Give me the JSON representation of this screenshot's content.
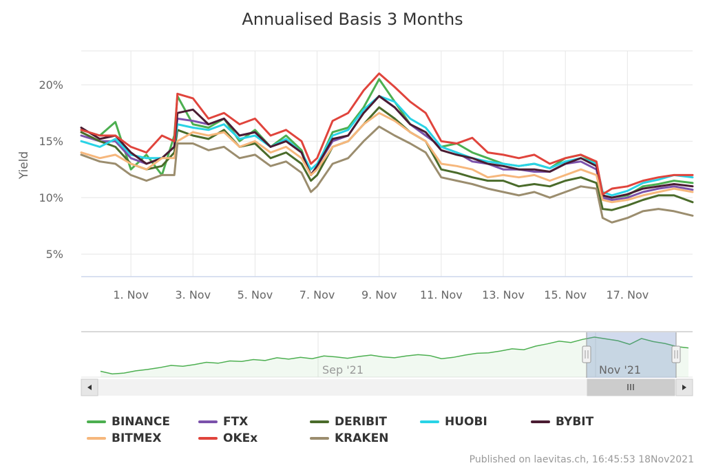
{
  "chart_data": {
    "type": "line",
    "title": "Annualised Basis 3 Months",
    "ylabel": "Yield",
    "xlabel": "",
    "ylim": [
      3,
      23
    ],
    "xlim": [
      -0.6,
      19.1
    ],
    "y_ticks": [
      5,
      10,
      15,
      20
    ],
    "y_tick_labels": [
      "5%",
      "10%",
      "15%",
      "20%"
    ],
    "x_ticks": [
      1,
      3,
      5,
      7,
      9,
      11,
      13,
      15,
      17
    ],
    "x_tick_labels": [
      "1. Nov",
      "3. Nov",
      "5. Nov",
      "7. Nov",
      "9. Nov",
      "11. Nov",
      "13. Nov",
      "15. Nov",
      "17. Nov"
    ],
    "x_unit": "day of November 2021",
    "grid": true,
    "series": [
      {
        "name": "BINANCE",
        "color": "#4caf50",
        "x": [
          -0.6,
          0.0,
          0.5,
          1.0,
          1.5,
          2.0,
          2.4,
          2.5,
          3.0,
          3.5,
          4.0,
          4.5,
          5.0,
          5.5,
          6.0,
          6.5,
          6.8,
          7.0,
          7.5,
          8.0,
          8.5,
          9.0,
          9.5,
          10.0,
          10.5,
          11.0,
          11.5,
          12.0,
          12.5,
          13.0,
          13.5,
          14.0,
          14.5,
          15.0,
          15.5,
          16.0,
          16.2,
          16.5,
          17.0,
          17.5,
          18.0,
          18.5,
          19.1
        ],
        "values": [
          16.0,
          15.5,
          16.7,
          12.5,
          13.8,
          12.0,
          15.5,
          19.0,
          16.5,
          16.2,
          17.0,
          15.0,
          16.0,
          14.5,
          15.5,
          14.2,
          12.0,
          12.8,
          15.8,
          16.2,
          18.0,
          20.5,
          18.5,
          16.5,
          15.5,
          14.5,
          14.8,
          14.0,
          13.5,
          13.0,
          12.8,
          13.0,
          12.6,
          13.5,
          13.8,
          13.0,
          10.2,
          10.0,
          10.2,
          11.0,
          11.2,
          11.5,
          11.3
        ]
      },
      {
        "name": "FTX",
        "color": "#7b52ab",
        "x": [
          -0.6,
          0.0,
          0.5,
          1.0,
          1.5,
          2.0,
          2.4,
          2.5,
          3.0,
          3.5,
          4.0,
          4.5,
          5.0,
          5.5,
          6.0,
          6.5,
          6.8,
          7.0,
          7.5,
          8.0,
          8.5,
          9.0,
          9.5,
          10.0,
          10.5,
          11.0,
          11.5,
          12.0,
          12.5,
          13.0,
          13.5,
          14.0,
          14.5,
          15.0,
          15.5,
          16.0,
          16.2,
          16.5,
          17.0,
          17.5,
          18.0,
          18.5,
          19.1
        ],
        "values": [
          15.5,
          15.0,
          15.0,
          13.5,
          13.0,
          13.5,
          14.5,
          17.0,
          16.8,
          16.5,
          17.0,
          15.5,
          15.8,
          14.5,
          15.0,
          14.0,
          12.0,
          12.8,
          15.0,
          15.5,
          17.5,
          19.0,
          18.0,
          16.5,
          15.5,
          14.5,
          14.0,
          13.2,
          13.0,
          12.5,
          12.5,
          12.3,
          12.3,
          13.0,
          13.2,
          12.5,
          10.0,
          9.8,
          10.0,
          10.5,
          10.8,
          11.0,
          10.7
        ]
      },
      {
        "name": "DERIBIT",
        "color": "#4a6b2a",
        "x": [
          -0.6,
          0.0,
          0.5,
          1.0,
          1.5,
          2.0,
          2.4,
          2.5,
          3.0,
          3.5,
          4.0,
          4.5,
          5.0,
          5.5,
          6.0,
          6.5,
          6.8,
          7.0,
          7.5,
          8.0,
          8.5,
          9.0,
          9.5,
          10.0,
          10.5,
          11.0,
          11.5,
          12.0,
          12.5,
          13.0,
          13.5,
          14.0,
          14.5,
          15.0,
          15.5,
          16.0,
          16.2,
          16.5,
          17.0,
          17.5,
          18.0,
          18.5,
          19.1
        ],
        "values": [
          15.8,
          15.0,
          14.5,
          13.0,
          12.5,
          12.8,
          14.0,
          16.0,
          15.5,
          15.2,
          16.0,
          14.5,
          14.8,
          13.5,
          14.0,
          13.0,
          11.5,
          12.0,
          14.5,
          15.0,
          16.5,
          18.0,
          17.0,
          15.8,
          15.0,
          12.5,
          12.2,
          11.8,
          11.5,
          11.5,
          11.0,
          11.2,
          11.0,
          11.5,
          11.8,
          11.3,
          9.0,
          8.9,
          9.3,
          9.8,
          10.2,
          10.2,
          9.6
        ]
      },
      {
        "name": "HUOBI",
        "color": "#29d3e6",
        "x": [
          -0.6,
          0.0,
          0.5,
          1.0,
          1.5,
          2.0,
          2.4,
          2.5,
          3.0,
          3.5,
          4.0,
          4.5,
          5.0,
          5.5,
          6.0,
          6.5,
          6.8,
          7.0,
          7.5,
          8.0,
          8.5,
          9.0,
          9.5,
          10.0,
          10.5,
          11.0,
          11.5,
          12.0,
          12.5,
          13.0,
          13.5,
          14.0,
          14.5,
          15.0,
          15.5,
          16.0,
          16.2,
          16.5,
          17.0,
          17.5,
          18.0,
          18.5,
          19.1
        ],
        "values": [
          15.0,
          14.5,
          15.2,
          13.8,
          13.5,
          13.5,
          14.5,
          16.5,
          16.2,
          16.0,
          16.5,
          15.2,
          15.5,
          14.5,
          15.2,
          14.0,
          12.5,
          13.0,
          15.5,
          16.0,
          17.8,
          19.0,
          18.5,
          17.0,
          16.2,
          14.5,
          14.0,
          13.5,
          13.2,
          13.0,
          12.8,
          13.0,
          12.6,
          13.2,
          13.5,
          13.0,
          10.5,
          10.2,
          10.6,
          11.3,
          11.6,
          12.0,
          11.8
        ]
      },
      {
        "name": "BYBIT",
        "color": "#4a1c32",
        "x": [
          -0.6,
          0.0,
          0.5,
          1.0,
          1.5,
          2.0,
          2.4,
          2.5,
          3.0,
          3.5,
          4.0,
          4.5,
          5.0,
          5.5,
          6.0,
          6.5,
          6.8,
          7.0,
          7.5,
          8.0,
          8.5,
          9.0,
          9.5,
          10.0,
          10.5,
          11.0,
          11.5,
          12.0,
          12.5,
          13.0,
          13.5,
          14.0,
          14.5,
          15.0,
          15.5,
          16.0,
          16.2,
          16.5,
          17.0,
          17.5,
          18.0,
          18.5,
          19.1
        ],
        "values": [
          16.2,
          15.2,
          15.5,
          14.0,
          13.0,
          13.5,
          14.5,
          17.5,
          17.8,
          16.5,
          17.0,
          15.5,
          15.8,
          14.5,
          15.0,
          14.0,
          12.0,
          12.8,
          15.2,
          15.5,
          17.5,
          19.0,
          18.0,
          16.5,
          15.8,
          14.2,
          13.8,
          13.5,
          13.0,
          12.8,
          12.5,
          12.5,
          12.3,
          13.0,
          13.5,
          12.8,
          10.2,
          10.0,
          10.3,
          10.8,
          11.0,
          11.2,
          11.0
        ]
      },
      {
        "name": "BITMEX",
        "color": "#f6b77c",
        "x": [
          -0.6,
          0.0,
          0.5,
          1.0,
          1.5,
          2.0,
          2.4,
          2.5,
          3.0,
          3.5,
          4.0,
          4.5,
          5.0,
          5.5,
          6.0,
          6.5,
          6.8,
          7.0,
          7.5,
          8.0,
          8.5,
          9.0,
          9.5,
          10.0,
          10.5,
          11.0,
          11.5,
          12.0,
          12.5,
          13.0,
          13.5,
          14.0,
          14.5,
          15.0,
          15.5,
          16.0,
          16.2,
          16.5,
          17.0,
          17.5,
          18.0,
          18.5,
          19.1
        ],
        "values": [
          14.0,
          13.5,
          13.8,
          13.0,
          12.5,
          13.5,
          13.5,
          15.0,
          15.8,
          15.5,
          15.8,
          14.5,
          15.0,
          14.0,
          14.5,
          13.5,
          12.0,
          12.5,
          14.5,
          15.0,
          16.5,
          17.5,
          16.8,
          15.8,
          15.0,
          13.0,
          12.8,
          12.5,
          11.8,
          12.0,
          11.8,
          12.0,
          11.5,
          12.0,
          12.5,
          12.0,
          9.8,
          9.6,
          9.8,
          10.2,
          10.5,
          10.8,
          10.5
        ]
      },
      {
        "name": "OKEx",
        "color": "#e0443c",
        "x": [
          -0.6,
          0.0,
          0.5,
          1.0,
          1.5,
          2.0,
          2.4,
          2.5,
          3.0,
          3.5,
          4.0,
          4.5,
          5.0,
          5.5,
          6.0,
          6.5,
          6.8,
          7.0,
          7.5,
          8.0,
          8.5,
          9.0,
          9.5,
          10.0,
          10.5,
          11.0,
          11.5,
          12.0,
          12.5,
          13.0,
          13.5,
          14.0,
          14.5,
          15.0,
          15.5,
          16.0,
          16.2,
          16.5,
          17.0,
          17.5,
          18.0,
          18.5,
          19.1
        ],
        "values": [
          16.0,
          15.5,
          15.5,
          14.5,
          14.0,
          15.5,
          15.0,
          19.2,
          18.8,
          17.0,
          17.5,
          16.5,
          17.0,
          15.5,
          16.0,
          15.0,
          13.0,
          13.5,
          16.8,
          17.5,
          19.5,
          21.0,
          19.8,
          18.5,
          17.5,
          15.0,
          14.8,
          15.3,
          14.0,
          13.8,
          13.5,
          13.8,
          13.0,
          13.5,
          13.8,
          13.2,
          10.3,
          10.8,
          11.0,
          11.5,
          11.8,
          12.0,
          12.0
        ]
      },
      {
        "name": "KRAKEN",
        "color": "#9b8d6e",
        "x": [
          -0.6,
          0.0,
          0.5,
          1.0,
          1.5,
          2.0,
          2.4,
          2.5,
          3.0,
          3.5,
          4.0,
          4.5,
          5.0,
          5.5,
          6.0,
          6.5,
          6.8,
          7.0,
          7.5,
          8.0,
          8.5,
          9.0,
          9.5,
          10.0,
          10.5,
          11.0,
          11.5,
          12.0,
          12.5,
          13.0,
          13.5,
          14.0,
          14.5,
          15.0,
          15.5,
          16.0,
          16.2,
          16.5,
          17.0,
          17.5,
          18.0,
          18.5,
          19.1
        ],
        "values": [
          13.8,
          13.2,
          13.0,
          12.0,
          11.5,
          12.0,
          12.0,
          14.8,
          14.8,
          14.2,
          14.5,
          13.5,
          13.8,
          12.8,
          13.2,
          12.2,
          10.5,
          11.0,
          13.0,
          13.5,
          15.0,
          16.3,
          15.5,
          14.8,
          14.0,
          11.8,
          11.5,
          11.2,
          10.8,
          10.5,
          10.2,
          10.5,
          10.0,
          10.5,
          11.0,
          10.8,
          8.2,
          7.8,
          8.2,
          8.8,
          9.0,
          8.8,
          8.4
        ]
      }
    ]
  },
  "navigator": {
    "x_labels": [
      "Sep '21",
      "Nov '21"
    ],
    "series_name": "BINANCE",
    "values": [
      13.8,
      13.2,
      13.4,
      13.9,
      14.2,
      14.6,
      15.1,
      14.9,
      15.3,
      15.8,
      15.6,
      16.1,
      16.0,
      16.4,
      16.2,
      16.8,
      16.5,
      16.9,
      16.6,
      17.2,
      17.0,
      16.7,
      17.1,
      17.4,
      17.0,
      16.8,
      17.2,
      17.5,
      17.3,
      16.6,
      16.9,
      17.4,
      17.8,
      17.9,
      18.3,
      18.8,
      18.6,
      19.4,
      19.9,
      20.5,
      20.2,
      20.9,
      21.4,
      21.0,
      20.6,
      19.8,
      21.1,
      20.4,
      20.0,
      19.3,
      19.0
    ]
  },
  "credit": "Published on laevitas.ch, 16:45:53 18Nov2021"
}
